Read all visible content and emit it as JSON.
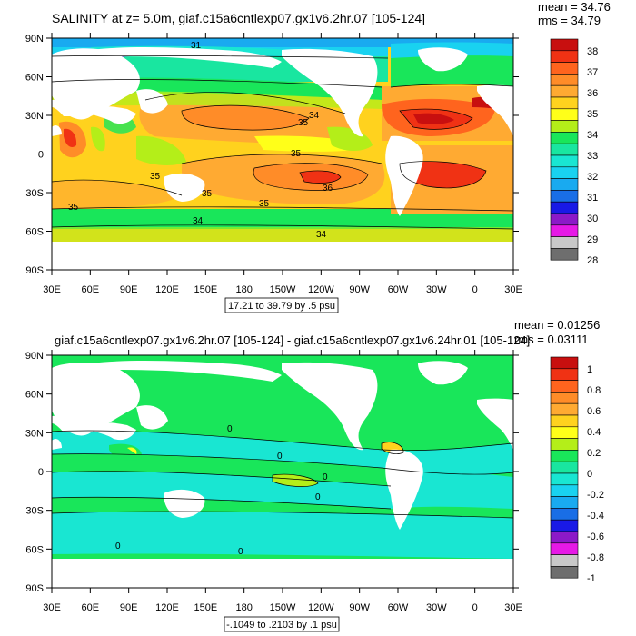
{
  "colors": {
    "land": "#ffffff",
    "frame": "#000000",
    "salinity_scale": [
      "#6e6e6e",
      "#c8c8c8",
      "#e619e6",
      "#8c19c8",
      "#1919e6",
      "#196ee6",
      "#19aaf0",
      "#19d2f0",
      "#19e6d2",
      "#19e6a0",
      "#19e65a",
      "#b4ee19",
      "#ffff19",
      "#ffd21e",
      "#ffaa32",
      "#ff8c28",
      "#ff641e",
      "#f03214",
      "#c80f0f"
    ],
    "diff_scale": [
      "#6e6e6e",
      "#c8c8c8",
      "#e619e6",
      "#8c19c8",
      "#1919e6",
      "#196ee6",
      "#19aaf0",
      "#19d2f0",
      "#19e6d2",
      "#19e6a0",
      "#19e65a",
      "#b4ee19",
      "#ffff19",
      "#ffd21e",
      "#ffaa32",
      "#ff8c28",
      "#ff641e",
      "#f03214",
      "#c80f0f"
    ]
  },
  "panels": [
    {
      "id": "salinity",
      "title": "SALINITY at z=   5.0m, giaf.c15a6cntlexp07.gx1v6.2hr.07 [105-124]",
      "stats": [
        "mean = 34.76",
        "rms = 34.79"
      ],
      "range_label": "17.21 to 39.79 by .5 psu",
      "lat_labels": [
        "90N",
        "60N",
        "30N",
        "0",
        "30S",
        "60S",
        "90S"
      ],
      "lon_labels": [
        "30E",
        "60E",
        "90E",
        "120E",
        "150E",
        "180",
        "150W",
        "120W",
        "90W",
        "60W",
        "30W",
        "0",
        "30E"
      ],
      "colorbar_labels": [
        "38",
        "37",
        "36",
        "35",
        "34",
        "33",
        "32",
        "31",
        "30",
        "29",
        "28"
      ],
      "contour_labels": [
        "31",
        "34",
        "35",
        "35",
        "35",
        "35",
        "36",
        "35",
        "35",
        "34",
        "34"
      ]
    },
    {
      "id": "difference",
      "title": "giaf.c15a6cntlexp07.gx1v6.2hr.07 [105-124] - giaf.c15a6cntlexp07.gx1v6.24hr.01 [105-124]",
      "stats": [
        "mean = 0.01256",
        "rms = 0.03111"
      ],
      "range_label": "-.1049 to .2103 by .1 psu",
      "lat_labels": [
        "90N",
        "60N",
        "30N",
        "0",
        "30S",
        "60S",
        "90S"
      ],
      "lon_labels": [
        "30E",
        "60E",
        "90E",
        "120E",
        "150E",
        "180",
        "150W",
        "120W",
        "90W",
        "60W",
        "30W",
        "0",
        "30E"
      ],
      "colorbar_labels": [
        "1",
        "0.8",
        "0.6",
        "0.4",
        "0.2",
        "0",
        "-0.2",
        "-0.4",
        "-0.6",
        "-0.8",
        "-1"
      ],
      "contour_labels": [
        "0",
        "0",
        "0",
        "0",
        "0",
        "0"
      ]
    }
  ]
}
